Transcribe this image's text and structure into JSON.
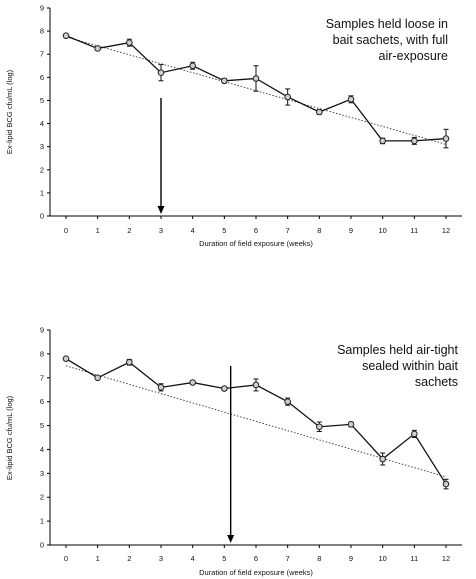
{
  "chart_data": [
    {
      "type": "line",
      "xlabel": "Duration of field exposure (weeks)",
      "ylabel": "Ex-lipid BCG cfu/mL (log)",
      "xlim": [
        0,
        12
      ],
      "ylim": [
        0,
        9
      ],
      "x_ticks": [
        "0",
        "1",
        "2",
        "3",
        "4",
        "5",
        "6",
        "7",
        "8",
        "9",
        "10",
        "11",
        "12"
      ],
      "y_ticks": [
        "0",
        "1",
        "2",
        "3",
        "4",
        "5",
        "6",
        "7",
        "8",
        "9"
      ],
      "annotation": [
        "Samples held loose in",
        "bait sachets, with full",
        "air-exposure"
      ],
      "arrow_at_week": 3,
      "trendline": {
        "style": "dotted",
        "from": [
          0,
          7.75
        ],
        "to": [
          12,
          3.1
        ]
      },
      "series": [
        {
          "x": [
            0,
            1,
            2,
            3,
            4,
            5,
            6,
            7,
            8,
            9,
            10,
            11,
            12
          ],
          "values": [
            7.8,
            7.25,
            7.5,
            6.2,
            6.5,
            5.85,
            5.95,
            5.15,
            4.5,
            5.05,
            3.25,
            3.25,
            3.35
          ],
          "error": [
            0.05,
            0.08,
            0.15,
            0.35,
            0.15,
            0.1,
            0.55,
            0.35,
            0.1,
            0.15,
            0.12,
            0.15,
            0.4
          ]
        }
      ],
      "grid": false
    },
    {
      "type": "line",
      "xlabel": "Duration of field exposure (weeks)",
      "ylabel": "Ex-lipid BCG cfu/mL (log)",
      "xlim": [
        0,
        12
      ],
      "ylim": [
        0,
        9
      ],
      "x_ticks": [
        "0",
        "1",
        "2",
        "3",
        "4",
        "5",
        "6",
        "7",
        "8",
        "9",
        "10",
        "11",
        "12"
      ],
      "y_ticks": [
        "0",
        "1",
        "2",
        "3",
        "4",
        "5",
        "6",
        "7",
        "8",
        "9"
      ],
      "annotation": [
        "Samples held air-tight",
        "sealed within bait",
        "sachets"
      ],
      "arrow_at_week": 5.2,
      "trendline": {
        "style": "dotted",
        "from": [
          0,
          7.5
        ],
        "to": [
          12,
          2.85
        ]
      },
      "series": [
        {
          "x": [
            0,
            1,
            2,
            3,
            4,
            5,
            6,
            7,
            8,
            9,
            10,
            11,
            12
          ],
          "values": [
            7.8,
            7.0,
            7.65,
            6.6,
            6.8,
            6.55,
            6.7,
            6.0,
            4.95,
            5.05,
            3.6,
            4.65,
            2.55
          ],
          "error": [
            0.05,
            0.05,
            0.12,
            0.15,
            0.08,
            0.08,
            0.25,
            0.15,
            0.2,
            0.1,
            0.25,
            0.15,
            0.2
          ]
        }
      ],
      "grid": false
    }
  ]
}
